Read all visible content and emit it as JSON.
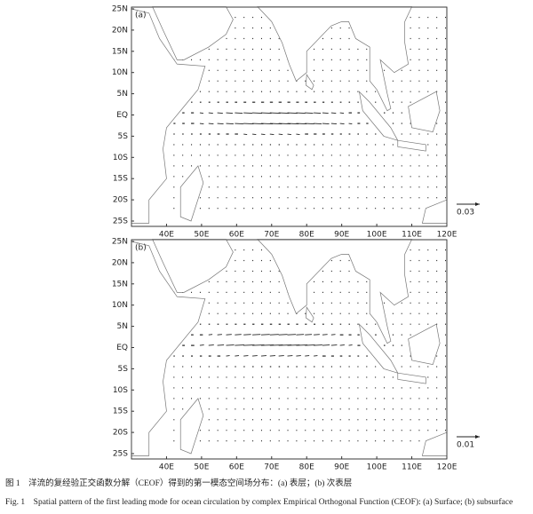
{
  "figure": {
    "panels": [
      {
        "label": "(a)",
        "reference": "0.03"
      },
      {
        "label": "(b)",
        "reference": "0.01"
      }
    ],
    "lat_labels": [
      "25N",
      "20N",
      "15N",
      "10N",
      "5N",
      "EQ",
      "5S",
      "10S",
      "15S",
      "20S",
      "25S"
    ],
    "lon_labels": [
      "40E",
      "50E",
      "60E",
      "70E",
      "80E",
      "90E",
      "100E",
      "110E",
      "120E"
    ],
    "caption_zh": "图 1　洋流的复经验正交函数分解（CEOF）得到的第一模态空间场分布：(a) 表层；(b) 次表层",
    "caption_en": "Fig. 1　Spatial pattern of the first leading mode for ocean circulation by complex Empirical Orthogonal Function (CEOF): (a) Surface; (b) subsurface"
  }
}
